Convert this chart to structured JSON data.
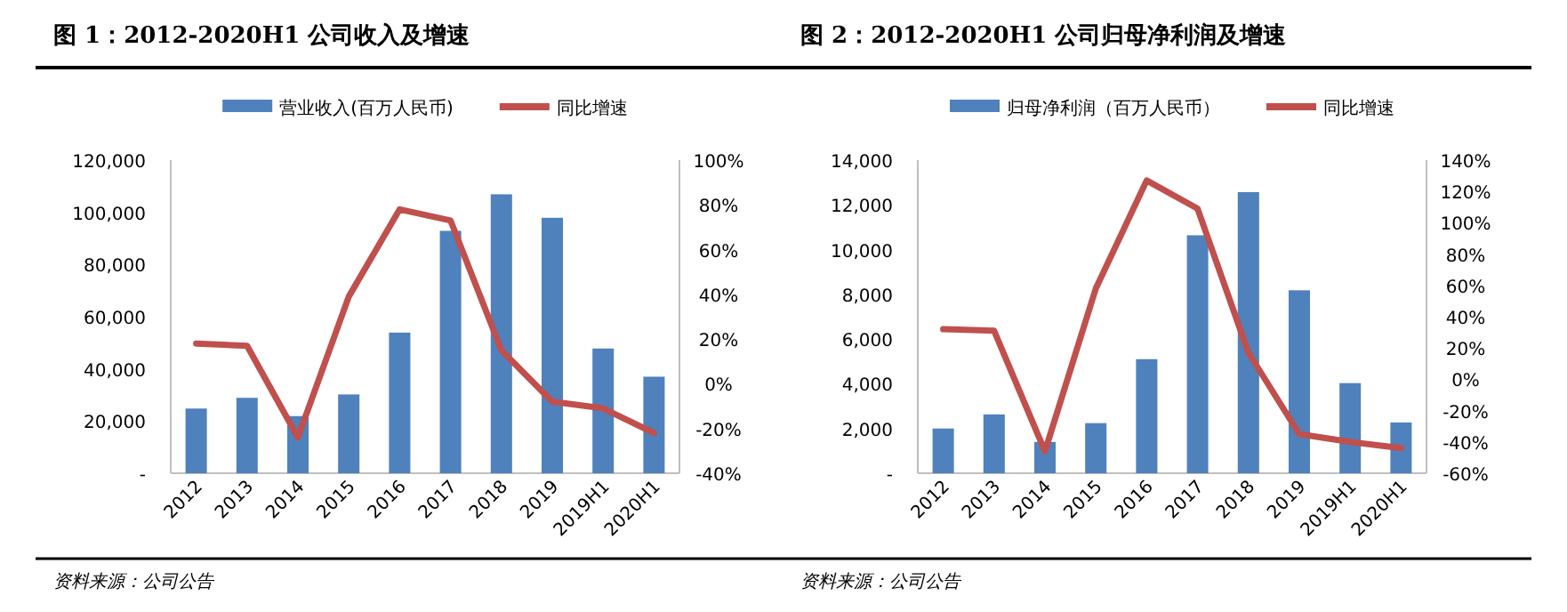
{
  "chart_data": [
    {
      "type": "bar",
      "title": "图 1：2012-2020H1 公司收入及增速",
      "categories": [
        "2012",
        "2013",
        "2014",
        "2015",
        "2016",
        "2017",
        "2018",
        "2019",
        "2019H1",
        "2020H1"
      ],
      "series": [
        {
          "name": "营业收入(百万人民币)",
          "color": "#4f81bd",
          "values": [
            24800,
            28900,
            21900,
            30200,
            53900,
            92900,
            106900,
            97900,
            47800,
            37000
          ]
        },
        {
          "name": "同比增速",
          "type": "line",
          "axis": "y2",
          "color": "#c0504d",
          "values": [
            18,
            17,
            -24,
            39,
            78,
            73,
            15,
            -8,
            -11,
            -22
          ]
        }
      ],
      "ylim": [
        0,
        120000
      ],
      "yticks": [
        {
          "value": 0,
          "label": "-"
        },
        {
          "value": 20000,
          "label": "20,000"
        },
        {
          "value": 40000,
          "label": "40,000"
        },
        {
          "value": 60000,
          "label": "60,000"
        },
        {
          "value": 80000,
          "label": "80,000"
        },
        {
          "value": 100000,
          "label": "100,000"
        },
        {
          "value": 120000,
          "label": "120,000"
        }
      ],
      "y2lim": [
        -40,
        100
      ],
      "y2ticks": [
        {
          "value": -40,
          "label": "-40%"
        },
        {
          "value": -20,
          "label": "-20%"
        },
        {
          "value": 0,
          "label": "0%"
        },
        {
          "value": 20,
          "label": "20%"
        },
        {
          "value": 40,
          "label": "40%"
        },
        {
          "value": 60,
          "label": "60%"
        },
        {
          "value": 80,
          "label": "80%"
        },
        {
          "value": 100,
          "label": "100%"
        }
      ],
      "legend": "top",
      "annotations": [
        "资料来源：公司公告"
      ]
    },
    {
      "type": "bar",
      "title": "图 2：2012-2020H1 公司归母净利润及增速",
      "categories": [
        "2012",
        "2013",
        "2014",
        "2015",
        "2016",
        "2017",
        "2018",
        "2019",
        "2019H1",
        "2020H1"
      ],
      "series": [
        {
          "name": "归母净利润（百万人民币）",
          "color": "#4f81bd",
          "values": [
            2000,
            2630,
            1400,
            2240,
            5100,
            10640,
            12570,
            8180,
            4030,
            2270
          ]
        },
        {
          "name": "同比增速",
          "type": "line",
          "axis": "y2",
          "color": "#c0504d",
          "values": [
            32,
            31,
            -46,
            58,
            127,
            109,
            17,
            -35,
            -40,
            -44
          ]
        }
      ],
      "ylim": [
        0,
        14000
      ],
      "yticks": [
        {
          "value": 0,
          "label": "-"
        },
        {
          "value": 2000,
          "label": "2,000"
        },
        {
          "value": 4000,
          "label": "4,000"
        },
        {
          "value": 6000,
          "label": "6,000"
        },
        {
          "value": 8000,
          "label": "8,000"
        },
        {
          "value": 10000,
          "label": "10,000"
        },
        {
          "value": 12000,
          "label": "12,000"
        },
        {
          "value": 14000,
          "label": "14,000"
        }
      ],
      "y2lim": [
        -60,
        140
      ],
      "y2ticks": [
        {
          "value": -60,
          "label": "-60%"
        },
        {
          "value": -40,
          "label": "-40%"
        },
        {
          "value": -20,
          "label": "-20%"
        },
        {
          "value": 0,
          "label": "0%"
        },
        {
          "value": 20,
          "label": "20%"
        },
        {
          "value": 40,
          "label": "40%"
        },
        {
          "value": 60,
          "label": "60%"
        },
        {
          "value": 80,
          "label": "80%"
        },
        {
          "value": 100,
          "label": "100%"
        },
        {
          "value": 120,
          "label": "120%"
        },
        {
          "value": 140,
          "label": "140%"
        }
      ],
      "legend": "top",
      "annotations": [
        "资料来源：公司公告"
      ]
    }
  ]
}
